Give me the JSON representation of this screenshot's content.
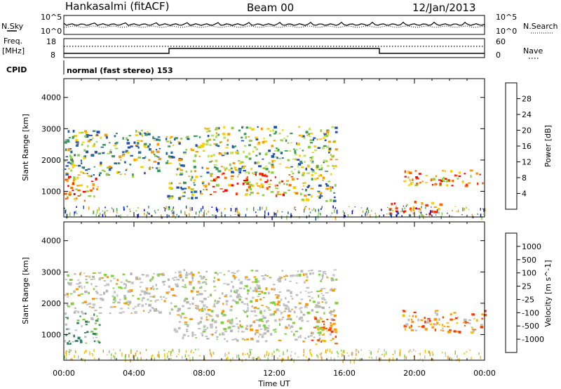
{
  "header": {
    "station": "Hankasalmi (fitACF)",
    "beam": "Beam 00",
    "date": "12/Jan/2013"
  },
  "top_panels": {
    "nsky_label": "N.Sky",
    "nsky_ticks": [
      "10^5",
      "10^0"
    ],
    "nsearch_label": "N.Search",
    "nsearch_ticks": [
      "10^5",
      "10^0"
    ],
    "freq_label_1": "Freq.",
    "freq_label_2": "[MHz]",
    "freq_ticks": [
      "18",
      "8"
    ],
    "nave_label": "Nave",
    "nave_ticks": [
      "60",
      "0"
    ],
    "cpid_label": "CPID",
    "cpid_text": "normal (fast stereo) 153"
  },
  "chart_data": [
    {
      "type": "heatmap",
      "title": "",
      "parameter": "Power",
      "xlabel": "Time UT",
      "ylabel": "Slant Range [km]",
      "x_ticks": [
        "00:00",
        "04:00",
        "08:00",
        "12:00",
        "16:00",
        "20:00",
        "00:00"
      ],
      "xlim_hours": [
        0,
        24
      ],
      "y_ticks": [
        1000,
        2000,
        3000,
        4000
      ],
      "ylim_km": [
        180,
        4600
      ],
      "colorbar": {
        "label": "Power [dB]",
        "ticks": [
          "4",
          "8",
          "12",
          "16",
          "20",
          "24",
          "28"
        ],
        "colors": [
          "#0000ff",
          "#1f4fb0",
          "#3a9a5a",
          "#8fcf3f",
          "#f2c500",
          "#ff9900",
          "#ff5500",
          "#ff0000"
        ]
      },
      "regions": [
        {
          "t0": 0.0,
          "t1": 2.0,
          "r0": 700,
          "r1": 1500,
          "level": "high"
        },
        {
          "t0": 0.0,
          "t1": 5.5,
          "r0": 1500,
          "r1": 3000,
          "level": "mid"
        },
        {
          "t0": 5.8,
          "t1": 8.0,
          "r0": 800,
          "r1": 2800,
          "level": "mid"
        },
        {
          "t0": 8.0,
          "t1": 13.5,
          "r0": 900,
          "r1": 1600,
          "level": "high"
        },
        {
          "t0": 8.0,
          "t1": 15.5,
          "r0": 1600,
          "r1": 3100,
          "level": "low"
        },
        {
          "t0": 13.5,
          "t1": 15.5,
          "r0": 700,
          "r1": 1600,
          "level": "mid"
        },
        {
          "t0": 19.3,
          "t1": 24.0,
          "r0": 1200,
          "r1": 1700,
          "level": "high"
        },
        {
          "t0": 18.5,
          "t1": 21.5,
          "r0": 300,
          "r1": 700,
          "level": "high"
        }
      ]
    },
    {
      "type": "heatmap",
      "title": "",
      "parameter": "Velocity",
      "xlabel": "Time UT",
      "ylabel": "Slant Range [km]",
      "x_ticks": [
        "00:00",
        "04:00",
        "08:00",
        "12:00",
        "16:00",
        "20:00",
        "00:00"
      ],
      "xlim_hours": [
        0,
        24
      ],
      "y_ticks": [
        1000,
        2000,
        3000,
        4000
      ],
      "ylim_km": [
        180,
        4600
      ],
      "colorbar": {
        "label": "Velocity [m s^-1]",
        "ticks": [
          "1000",
          "500",
          "100",
          "25",
          "-25",
          "-100",
          "-500",
          "-1000"
        ],
        "colors": [
          "#1f3fb0",
          "#2a6aa0",
          "#3a9a5a",
          "#7fcf3f",
          "#bebebe",
          "#f2c500",
          "#ff9900",
          "#ff5500",
          "#ff0000"
        ]
      },
      "regions": [
        {
          "t0": 0.0,
          "t1": 2.0,
          "r0": 700,
          "r1": 1700,
          "level": "green"
        },
        {
          "t0": 0.0,
          "t1": 6.0,
          "r0": 1700,
          "r1": 3000,
          "level": "grey"
        },
        {
          "t0": 6.0,
          "t1": 15.5,
          "r0": 800,
          "r1": 3100,
          "level": "grey"
        },
        {
          "t0": 14.0,
          "t1": 15.5,
          "r0": 700,
          "r1": 1600,
          "level": "orange"
        },
        {
          "t0": 19.3,
          "t1": 24.0,
          "r0": 1100,
          "r1": 1800,
          "level": "orange"
        }
      ]
    }
  ]
}
